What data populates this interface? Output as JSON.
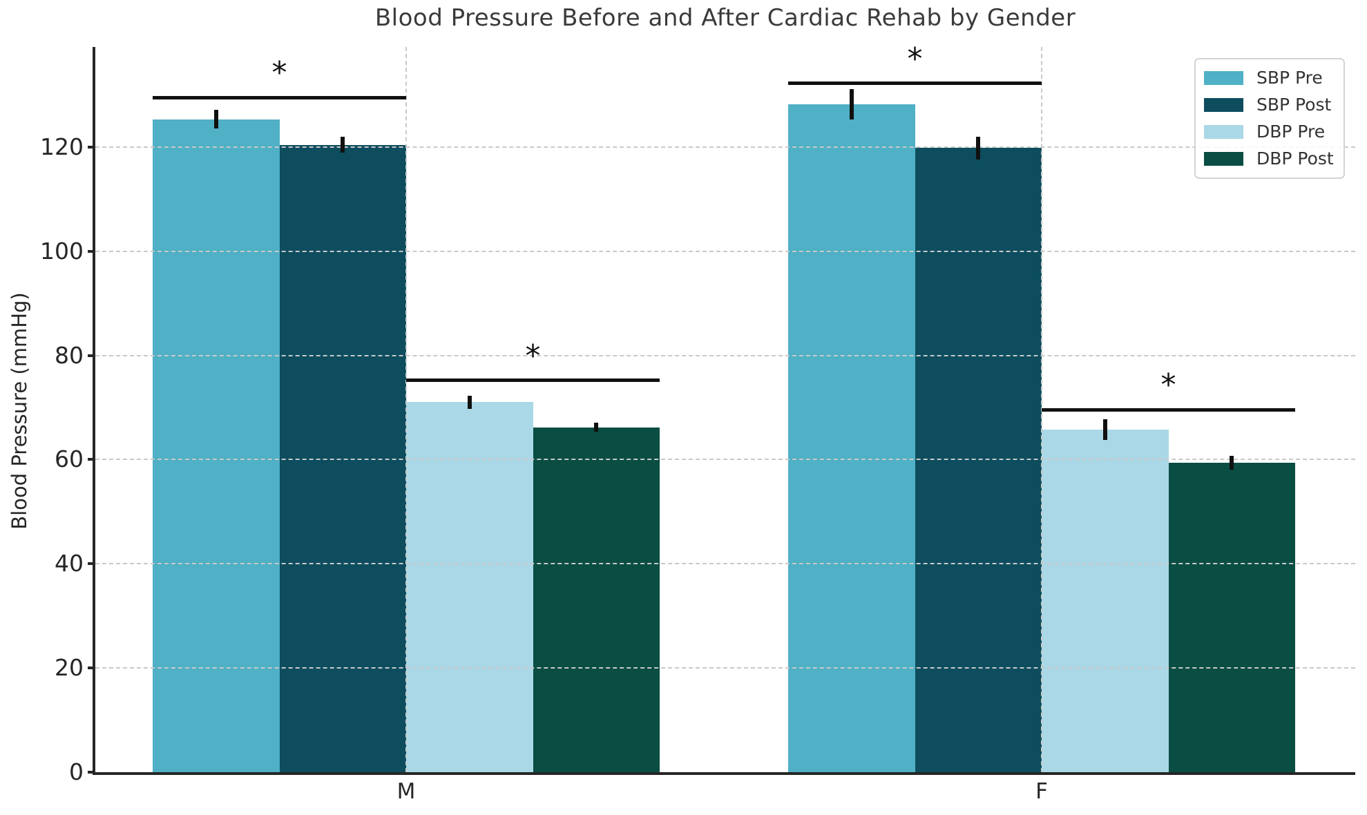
{
  "chart_data": {
    "type": "bar",
    "title": "Blood Pressure Before and After Cardiac Rehab by Gender",
    "ylabel": "Blood Pressure (mmHg)",
    "xlabel": "",
    "categories": [
      "M",
      "F"
    ],
    "series": [
      {
        "name": "SBP Pre",
        "color": "#4FB0C6",
        "values": [
          125.3,
          128.2
        ],
        "errors": [
          1.8,
          2.9
        ]
      },
      {
        "name": "SBP Post",
        "color": "#0D4D5E",
        "values": [
          120.4,
          119.8
        ],
        "errors": [
          1.5,
          2.2
        ]
      },
      {
        "name": "DBP Pre",
        "color": "#AAD8E6",
        "values": [
          71.0,
          65.8
        ],
        "errors": [
          1.3,
          2.0
        ]
      },
      {
        "name": "DBP Post",
        "color": "#0A4D43",
        "values": [
          66.2,
          59.4
        ],
        "errors": [
          0.9,
          1.3
        ]
      }
    ],
    "yticks": [
      0,
      20,
      40,
      60,
      80,
      100,
      120
    ],
    "ylim": [
      0,
      139.2
    ],
    "grid": "dashed",
    "legend_position": "upper right",
    "significance_markers": [
      {
        "category": "M",
        "pair": "SBP",
        "line_y": 129.5,
        "label": "*"
      },
      {
        "category": "M",
        "pair": "DBP",
        "line_y": 75.2,
        "label": "*"
      },
      {
        "category": "F",
        "pair": "SBP",
        "line_y": 132.2,
        "label": "*"
      },
      {
        "category": "F",
        "pair": "DBP",
        "line_y": 69.6,
        "label": "*"
      }
    ],
    "colors": {
      "grid": "#c9c9c9",
      "spine": "#262626",
      "title_text": "#3a3a3a",
      "annotation": "#111111"
    }
  }
}
